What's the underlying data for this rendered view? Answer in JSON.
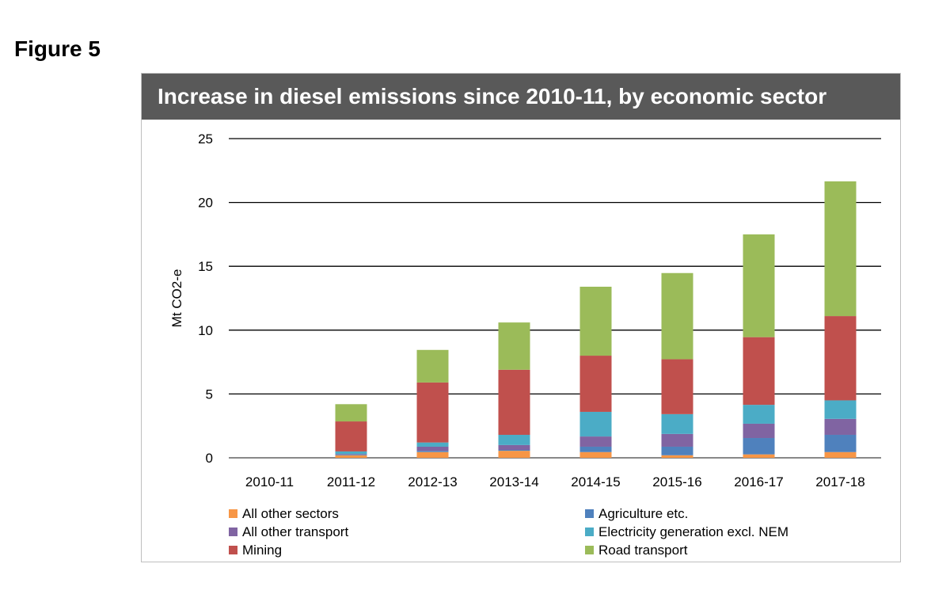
{
  "figure_label": "Figure 5",
  "chart_data": {
    "type": "bar",
    "stacked": true,
    "title": "Increase in diesel emissions since 2010-11, by economic sector",
    "xlabel": "",
    "ylabel": "Mt CO2-e",
    "ylim": [
      0,
      25
    ],
    "yticks": [
      0,
      5,
      10,
      15,
      20,
      25
    ],
    "grid": true,
    "legend_position": "bottom",
    "categories": [
      "2010-11",
      "2011-12",
      "2012-13",
      "2013-14",
      "2014-15",
      "2015-16",
      "2016-17",
      "2017-18"
    ],
    "series": [
      {
        "name": "All other sectors",
        "color": "#f79646",
        "values": [
          0,
          0.2,
          0.45,
          0.55,
          0.45,
          0.2,
          0.27,
          0.45
        ]
      },
      {
        "name": "Agriculture etc.",
        "color": "#4f81bd",
        "values": [
          0,
          0.05,
          0.1,
          0.07,
          0.42,
          0.67,
          1.28,
          1.35
        ]
      },
      {
        "name": "All other transport",
        "color": "#8064a2",
        "values": [
          0,
          0.05,
          0.32,
          0.38,
          0.8,
          1.0,
          1.12,
          1.25
        ]
      },
      {
        "name": "Electricity generation excl. NEM",
        "color": "#4bacc6",
        "values": [
          0,
          0.2,
          0.33,
          0.8,
          1.93,
          1.55,
          1.48,
          1.45
        ]
      },
      {
        "name": "Mining",
        "color": "#c0504d",
        "values": [
          0,
          2.35,
          4.7,
          5.1,
          4.4,
          4.3,
          5.3,
          6.6
        ]
      },
      {
        "name": "Road transport",
        "color": "#9bbb59",
        "values": [
          0,
          1.35,
          2.55,
          3.7,
          5.4,
          6.75,
          8.05,
          10.55
        ]
      }
    ]
  }
}
